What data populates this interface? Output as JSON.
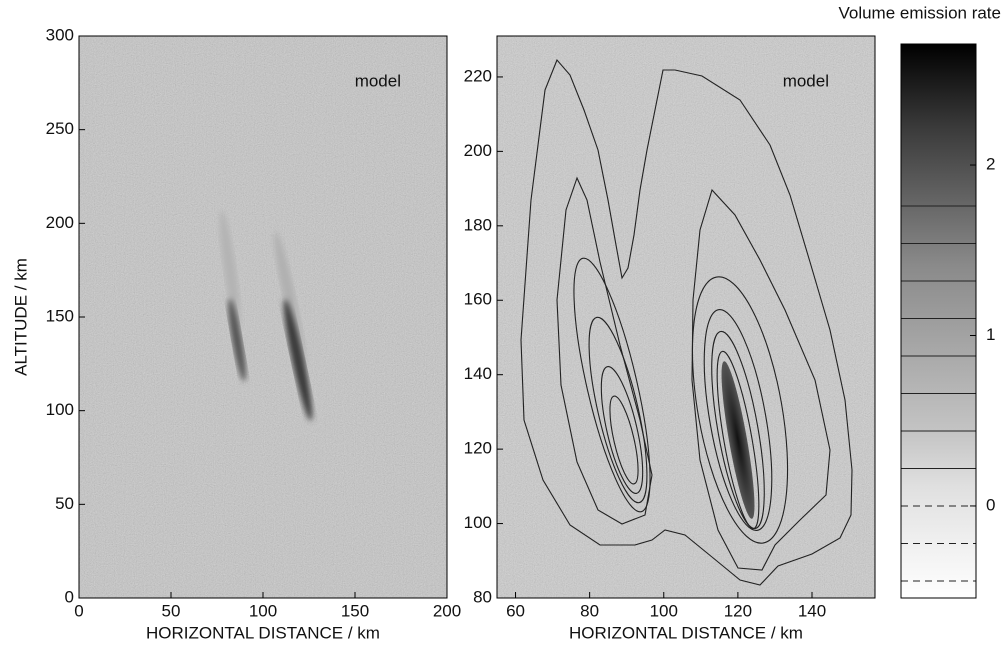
{
  "chart_data": [
    {
      "type": "heatmap",
      "annotation": "model",
      "x_label": "HORIZONTAL DISTANCE / km",
      "y_label": "ALTITUDE / km",
      "xlim": [
        0,
        200
      ],
      "xticks": [
        0,
        50,
        100,
        150,
        200
      ],
      "ylim": [
        0,
        300
      ],
      "yticks": [
        0,
        50,
        100,
        150,
        200,
        250,
        300
      ]
    },
    {
      "type": "contour",
      "annotation": "model",
      "x_label": "HORIZONTAL DISTANCE / km",
      "xlim": [
        55,
        157
      ],
      "xticks": [
        60,
        80,
        100,
        120,
        140
      ],
      "ylim": [
        80,
        231
      ],
      "yticks": [
        80,
        100,
        120,
        140,
        160,
        180,
        200,
        220
      ]
    },
    {
      "type": "colorbar",
      "title": "Volume emission rate",
      "ylim": [
        -0.54,
        2.71
      ],
      "yticks": [
        0,
        1,
        2
      ],
      "levels": [
        -0.44,
        -0.22,
        0,
        0.22,
        0.44,
        0.66,
        0.88,
        1.1,
        1.32,
        1.54,
        1.76
      ]
    }
  ]
}
